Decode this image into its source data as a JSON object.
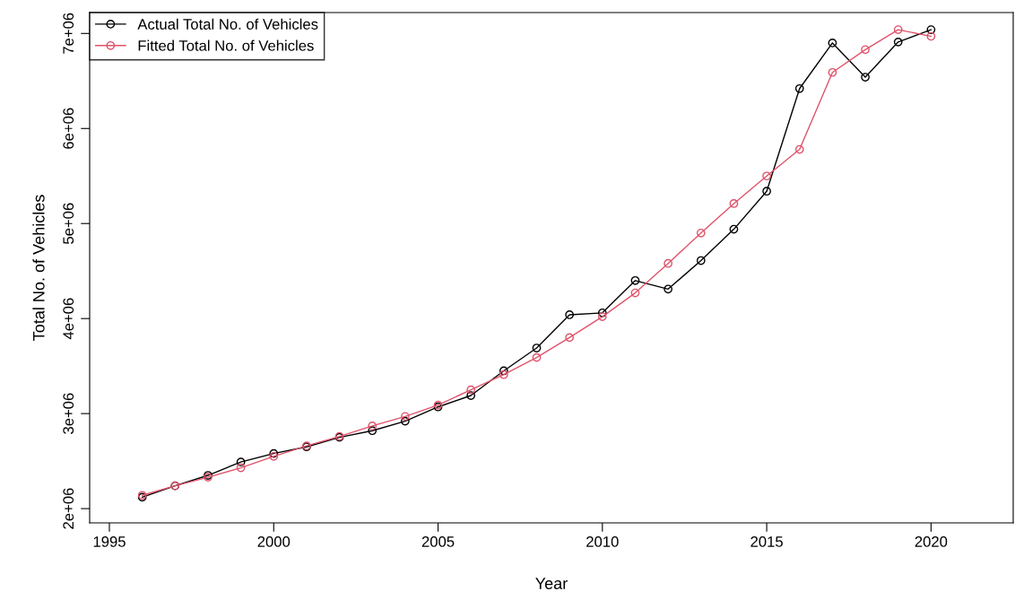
{
  "chart_data": {
    "type": "line",
    "xlabel": "Year",
    "ylabel": "Total No. of Vehicles",
    "x": [
      1996,
      1997,
      1998,
      1999,
      2000,
      2001,
      2002,
      2003,
      2004,
      2005,
      2006,
      2007,
      2008,
      2009,
      2010,
      2011,
      2012,
      2013,
      2014,
      2015,
      2016,
      2017,
      2018,
      2019,
      2020
    ],
    "series": [
      {
        "name": "Actual Total No. of Vehicles",
        "color": "#000000",
        "values": [
          2120000,
          2240000,
          2350000,
          2490000,
          2580000,
          2650000,
          2750000,
          2820000,
          2920000,
          3070000,
          3190000,
          3450000,
          3690000,
          4040000,
          4060000,
          4400000,
          4310000,
          4610000,
          4940000,
          5340000,
          6420000,
          6900000,
          6540000,
          6910000,
          7040000
        ]
      },
      {
        "name": "Fitted Total No. of Vehicles",
        "color": "#df536b",
        "values": [
          2140000,
          2240000,
          2330000,
          2430000,
          2550000,
          2660000,
          2760000,
          2870000,
          2970000,
          3090000,
          3250000,
          3410000,
          3590000,
          3800000,
          4020000,
          4270000,
          4580000,
          4900000,
          5210000,
          5500000,
          5780000,
          6590000,
          6830000,
          7040000,
          6970000
        ]
      }
    ],
    "xlim": [
      1994.4,
      2022.5
    ],
    "xticks": [
      1995,
      2000,
      2005,
      2010,
      2015,
      2020
    ],
    "ylim": [
      1850000,
      7220000
    ],
    "yticks": [
      {
        "value": 2000000,
        "label": "2e+06"
      },
      {
        "value": 3000000,
        "label": "3e+06"
      },
      {
        "value": 4000000,
        "label": "4e+06"
      },
      {
        "value": 5000000,
        "label": "5e+06"
      },
      {
        "value": 6000000,
        "label": "6e+06"
      },
      {
        "value": 7000000,
        "label": "7e+06"
      }
    ],
    "marker": "circle",
    "line_style": "solid",
    "legend": "top left",
    "grid": false
  }
}
